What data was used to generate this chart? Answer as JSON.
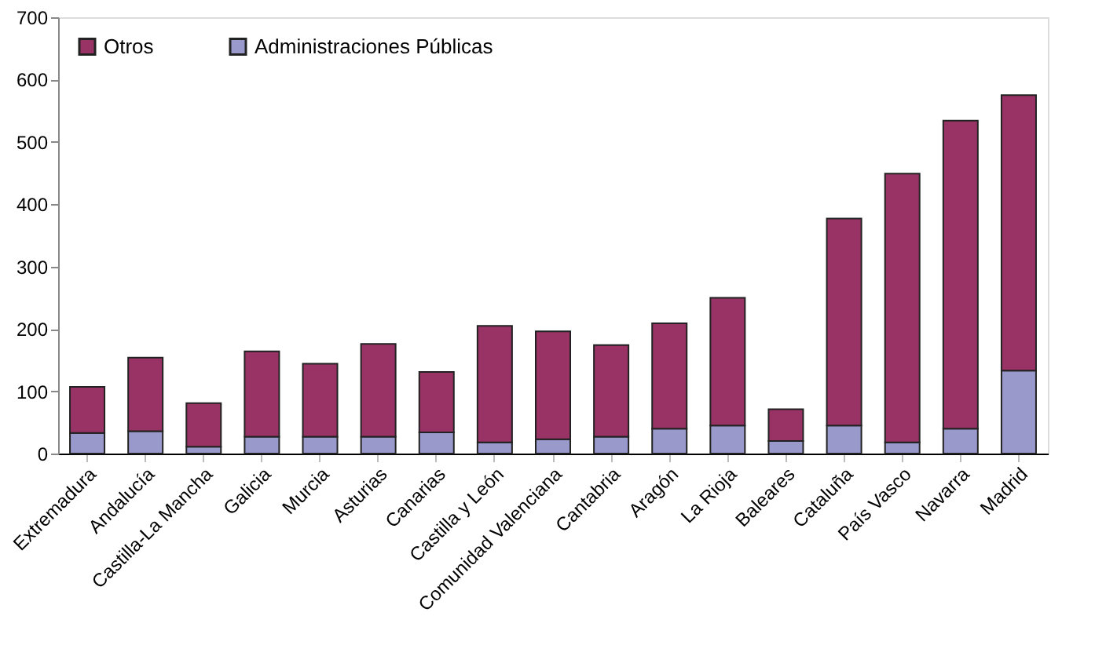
{
  "chart_data": {
    "type": "bar",
    "stacked": true,
    "categories": [
      "Extremadura",
      "Andalucía",
      "Castilla-La Mancha",
      "Galicia",
      "Murcia",
      "Asturias",
      "Canarias",
      "Castilla y León",
      "Comunidad Valenciana",
      "Cantabria",
      "Aragón",
      "La Rioja",
      "Baleares",
      "Cataluña",
      "País Vasco",
      "Navarra",
      "Madrid"
    ],
    "series": [
      {
        "name": "Administraciones Públicas",
        "color": "#9999cc",
        "values": [
          33,
          36,
          11,
          27,
          27,
          27,
          34,
          18,
          23,
          27,
          40,
          45,
          20,
          45,
          18,
          40,
          133
        ]
      },
      {
        "name": "Otros",
        "color": "#993366",
        "values": [
          74,
          118,
          70,
          137,
          117,
          149,
          97,
          187,
          173,
          147,
          169,
          205,
          51,
          332,
          431,
          494,
          442
        ]
      }
    ],
    "ylim": [
      0,
      700
    ],
    "yticks": [
      0,
      100,
      200,
      300,
      400,
      500,
      600,
      700
    ],
    "grid": false,
    "legend": "top left"
  }
}
